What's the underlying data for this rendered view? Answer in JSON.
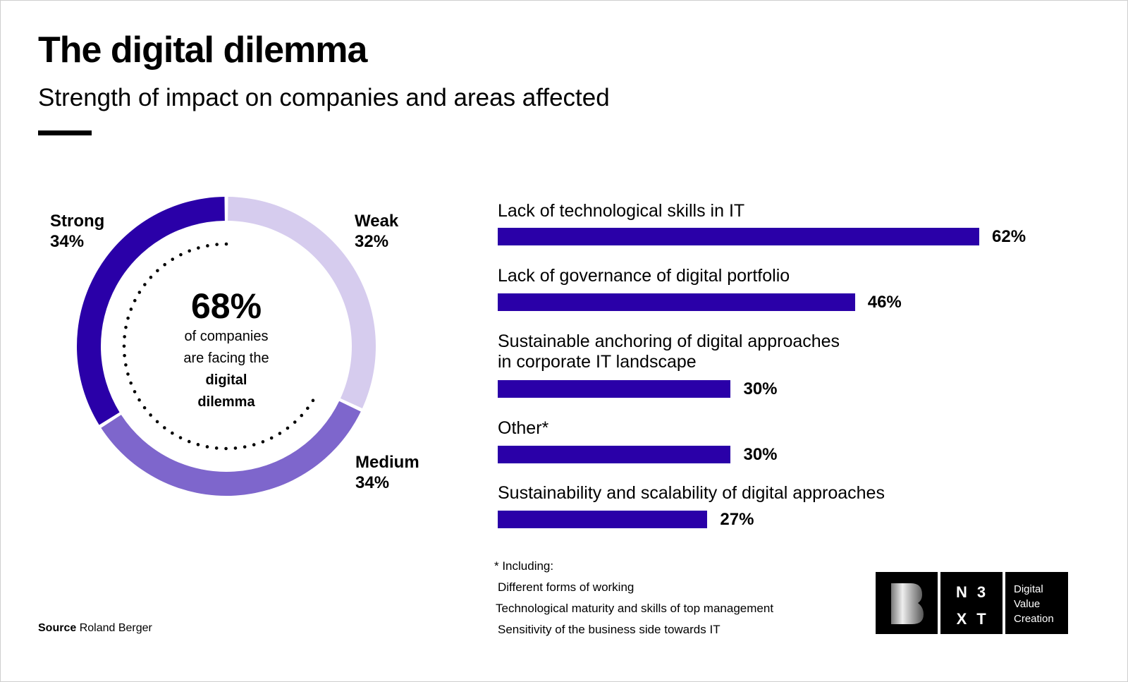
{
  "title": "The digital dilemma",
  "subtitle": "Strength of impact on companies and areas affected",
  "chart_data": [
    {
      "type": "pie",
      "variant": "donut",
      "slices": [
        {
          "label": "Weak",
          "value": 32,
          "color": "#d6ccee"
        },
        {
          "label": "Medium",
          "value": 34,
          "color": "#7e66cc"
        },
        {
          "label": "Strong",
          "value": 34,
          "color": "#2a00a8"
        }
      ],
      "center": {
        "value": "68%",
        "line1": "of companies",
        "line2": "are facing the",
        "line3": "digital",
        "line4": "dilemma"
      }
    },
    {
      "type": "bar",
      "orientation": "horizontal",
      "color": "#2a00a8",
      "xlim": [
        0,
        62
      ],
      "categories": [
        [
          "Lack of technological skills in IT"
        ],
        [
          "Lack of governance of digital portfolio"
        ],
        [
          "Sustainable anchoring of digital approaches",
          "in corporate IT landscape"
        ],
        [
          "Other*"
        ],
        [
          "Sustainability and scalability of digital approaches"
        ]
      ],
      "values": [
        62,
        46,
        30,
        30,
        27
      ],
      "value_labels": [
        "62%",
        "46%",
        "30%",
        "30%",
        "27%"
      ]
    }
  ],
  "labels": {
    "strong": "Strong",
    "strong_pct": "34%",
    "weak": "Weak",
    "weak_pct": "32%",
    "medium": "Medium",
    "medium_pct": "34%"
  },
  "footnote": {
    "head": "* Including:",
    "items": [
      "Different forms of working",
      "Technological maturity and skills of top management",
      "Sensitivity of the business side towards IT"
    ]
  },
  "source": {
    "label": "Source",
    "value": "Roland Berger"
  },
  "logo": {
    "letter": "B",
    "grid": [
      "N",
      "3",
      "X",
      "T"
    ],
    "text": [
      "Digital",
      "Value",
      "Creation"
    ]
  }
}
